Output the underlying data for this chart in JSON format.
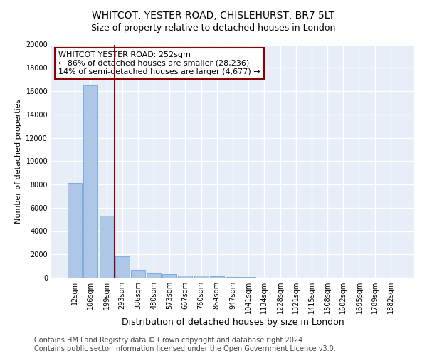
{
  "title": "WHITCOT, YESTER ROAD, CHISLEHURST, BR7 5LT",
  "subtitle": "Size of property relative to detached houses in London",
  "xlabel": "Distribution of detached houses by size in London",
  "ylabel": "Number of detached properties",
  "categories": [
    "12sqm",
    "106sqm",
    "199sqm",
    "293sqm",
    "386sqm",
    "480sqm",
    "573sqm",
    "667sqm",
    "760sqm",
    "854sqm",
    "947sqm",
    "1041sqm",
    "1134sqm",
    "1228sqm",
    "1321sqm",
    "1415sqm",
    "1508sqm",
    "1602sqm",
    "1695sqm",
    "1789sqm",
    "1882sqm"
  ],
  "values": [
    8100,
    16500,
    5300,
    1850,
    650,
    350,
    280,
    200,
    180,
    130,
    80,
    50,
    30,
    20,
    15,
    10,
    8,
    5,
    4,
    3,
    2
  ],
  "bar_color": "#aec6e8",
  "bar_edge_color": "#5a9fd4",
  "vline_x": 2.5,
  "vline_color": "#8b0000",
  "annotation_line1": "WHITCOT YESTER ROAD: 252sqm",
  "annotation_line2": "← 86% of detached houses are smaller (28,236)",
  "annotation_line3": "14% of semi-detached houses are larger (4,677) →",
  "annotation_box_color": "#8b0000",
  "ylim": [
    0,
    20000
  ],
  "yticks": [
    0,
    2000,
    4000,
    6000,
    8000,
    10000,
    12000,
    14000,
    16000,
    18000,
    20000
  ],
  "background_color": "#e8eef8",
  "grid_color": "#ffffff",
  "footer_line1": "Contains HM Land Registry data © Crown copyright and database right 2024.",
  "footer_line2": "Contains public sector information licensed under the Open Government Licence v3.0.",
  "title_fontsize": 10,
  "subtitle_fontsize": 9,
  "ylabel_fontsize": 8,
  "xlabel_fontsize": 9,
  "tick_fontsize": 7,
  "annotation_fontsize": 8,
  "footer_fontsize": 7
}
